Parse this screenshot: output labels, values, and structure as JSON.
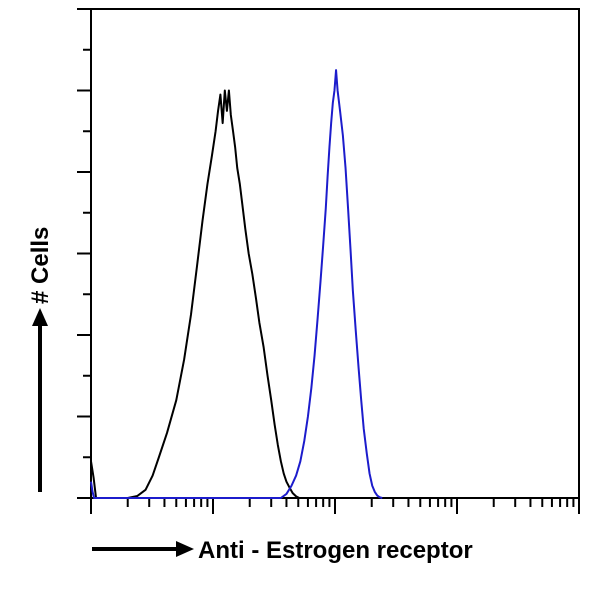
{
  "chart_data": {
    "type": "line",
    "title": "",
    "xlabel": "Anti - Estrogen receptor",
    "ylabel": "# Cells",
    "x_scale": "log",
    "xlim": [
      1,
      10000
    ],
    "ylim": [
      0,
      1.2
    ],
    "grid": false,
    "legend": "none",
    "x_tick_labels": [],
    "y_tick_labels": [],
    "series": [
      {
        "color": "#000000",
        "x": [
          1,
          1.05,
          1.1,
          2.0,
          2.4,
          2.8,
          3.2,
          3.6,
          4.2,
          5.0,
          5.8,
          6.6,
          7.4,
          8.2,
          9.0,
          9.8,
          10.5,
          11.0,
          11.5,
          12.0,
          12.5,
          13.0,
          13.5,
          14.0,
          14.6,
          15.2,
          15.8,
          16.6,
          17.4,
          18.4,
          19.6,
          21.0,
          22.5,
          24.0,
          26.0,
          28.0,
          30.0,
          32.0,
          34.0,
          36.0,
          38.0,
          40.0,
          42.5,
          45.0,
          48.0,
          51.0
        ],
        "values": [
          0.09,
          0.05,
          0.0,
          0.0,
          0.005,
          0.02,
          0.055,
          0.1,
          0.16,
          0.24,
          0.34,
          0.45,
          0.57,
          0.68,
          0.77,
          0.84,
          0.9,
          0.95,
          0.99,
          0.92,
          1.0,
          0.95,
          1.0,
          0.94,
          0.9,
          0.86,
          0.81,
          0.77,
          0.72,
          0.66,
          0.6,
          0.55,
          0.49,
          0.43,
          0.37,
          0.3,
          0.24,
          0.18,
          0.13,
          0.09,
          0.06,
          0.04,
          0.025,
          0.012,
          0.004,
          0.0
        ]
      },
      {
        "color": "#1c1ccc",
        "x": [
          1,
          1.03,
          1.06,
          36.0,
          40.0,
          44.0,
          48.0,
          52.0,
          56.0,
          60.0,
          64.0,
          68.0,
          72.0,
          76.0,
          80.0,
          84.0,
          87.0,
          90.0,
          93.0,
          96.0,
          99.0,
          102.0,
          105.0,
          110.0,
          116.0,
          122.0,
          128.0,
          134.0,
          140.0,
          148.0,
          156.0,
          164.0,
          172.0,
          182.0,
          192.0,
          202.0,
          212.0,
          222.0,
          232.0,
          244.0
        ],
        "values": [
          0.04,
          0.015,
          0.0,
          0.0,
          0.01,
          0.03,
          0.055,
          0.09,
          0.14,
          0.2,
          0.27,
          0.35,
          0.44,
          0.53,
          0.62,
          0.71,
          0.79,
          0.86,
          0.92,
          0.97,
          1.0,
          1.05,
          1.0,
          0.95,
          0.89,
          0.81,
          0.71,
          0.61,
          0.51,
          0.41,
          0.32,
          0.24,
          0.17,
          0.11,
          0.06,
          0.03,
          0.015,
          0.006,
          0.002,
          0.0
        ]
      }
    ]
  }
}
